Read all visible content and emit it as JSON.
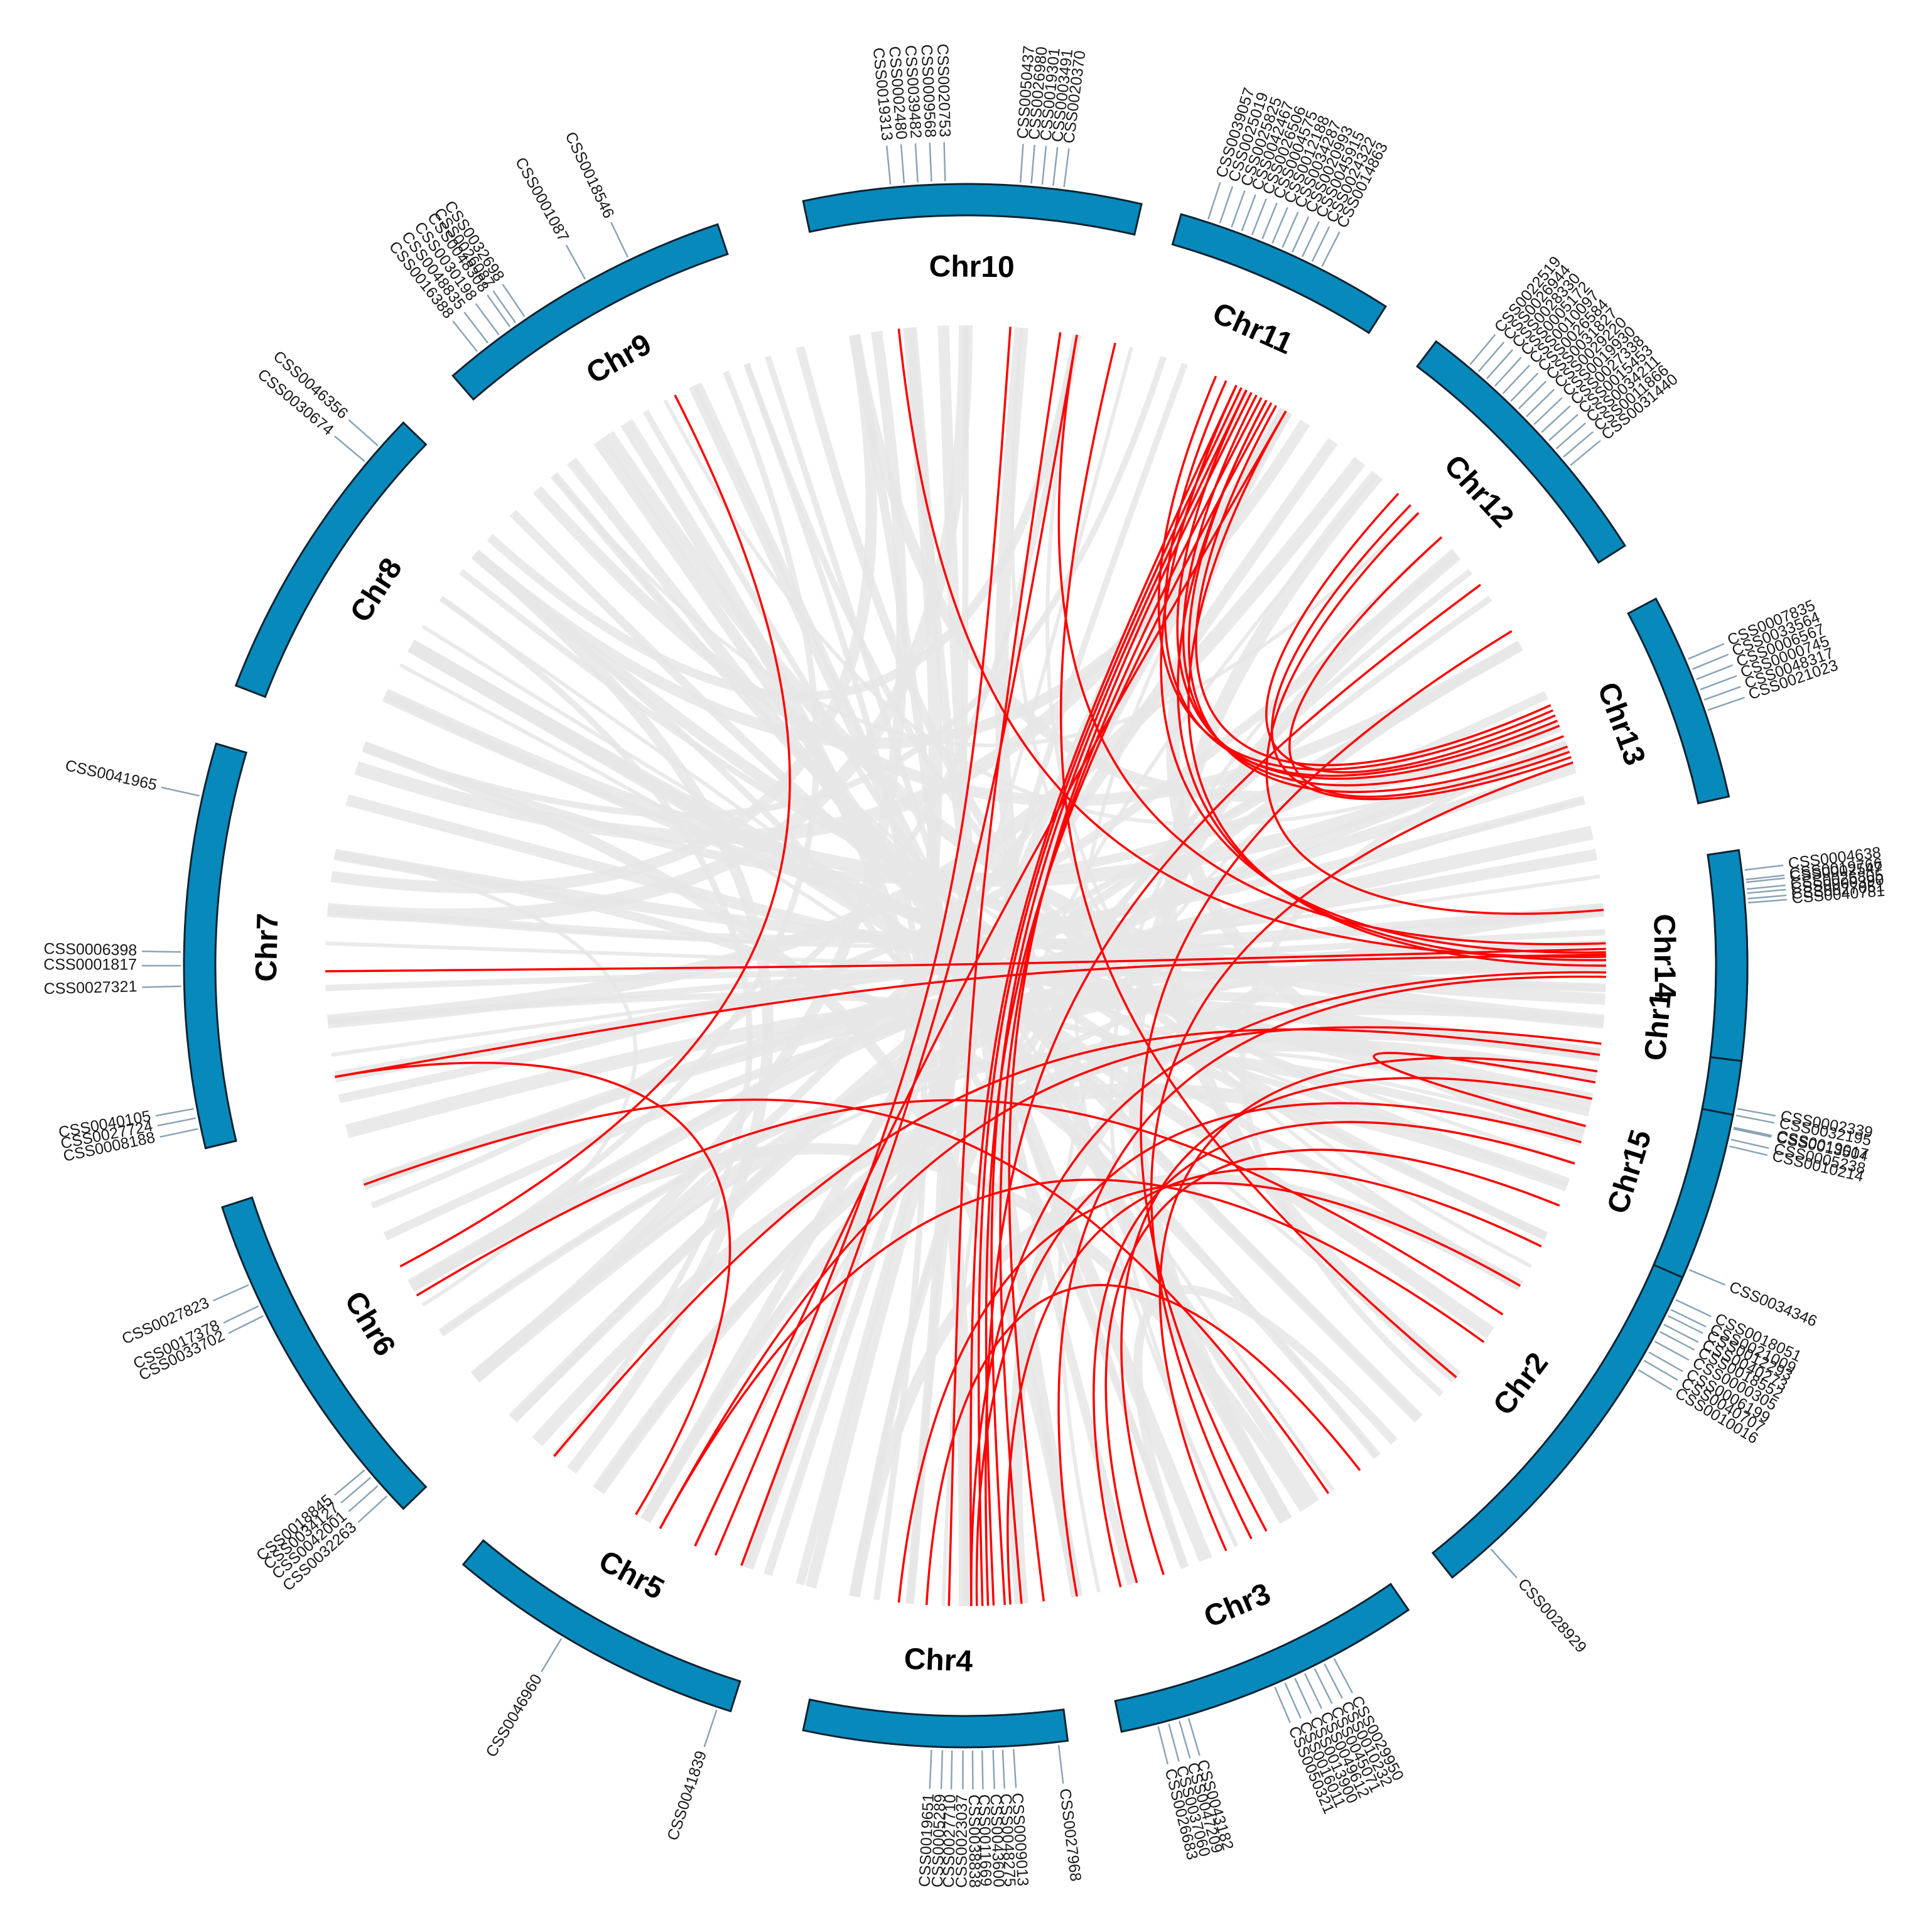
{
  "colors": {
    "chromosome": "#0789bc",
    "chromosome_outline": "#0b2330",
    "collinear_link": "#ff0000",
    "background_synteny": "#e6e6e6",
    "gene_tick": "#8aa4b6"
  },
  "chromosomes": [
    {
      "id": "Chr1",
      "label": "Chr1",
      "start": -6.5,
      "end": 16.5,
      "genes": [
        {
          "label": "CSS0002547",
          "pos": -6.1
        },
        {
          "label": "CSS0000390",
          "pos": -5.3
        },
        {
          "label": "CSS0040781",
          "pos": -4.6
        },
        {
          "label": "CSS0002339",
          "pos": 10.5
        },
        {
          "label": "CSS0032195",
          "pos": 11.0
        },
        {
          "label": "CSS0019017",
          "pos": 11.9
        },
        {
          "label": "CSS0005238",
          "pos": 12.8
        }
      ]
    },
    {
      "id": "Chr2",
      "label": "Chr2",
      "start": 22.5,
      "end": 51.5,
      "genes": [
        {
          "label": "CSS0018051",
          "pos": 25.2
        },
        {
          "label": "CSS0021009",
          "pos": 26.0
        },
        {
          "label": "CSS0012293",
          "pos": 26.5
        },
        {
          "label": "CSS0040273",
          "pos": 27.2
        },
        {
          "label": "CSS0018552",
          "pos": 27.8
        },
        {
          "label": "CSS0000305",
          "pos": 28.6
        },
        {
          "label": "CSS0006199",
          "pos": 29.5
        },
        {
          "label": "CSS0040707",
          "pos": 30.2
        },
        {
          "label": "CSS0010016",
          "pos": 31.0
        },
        {
          "label": "CSS0028929",
          "pos": 48.0
        }
      ]
    },
    {
      "id": "Chr3",
      "label": "Chr3",
      "start": 55.5,
      "end": 78.5,
      "genes": [
        {
          "label": "CSS0029950",
          "pos": 62.0
        },
        {
          "label": "CSS0010232",
          "pos": 62.8
        },
        {
          "label": "CSS0045071",
          "pos": 63.6
        },
        {
          "label": "CSS0049612",
          "pos": 64.4
        },
        {
          "label": "CSS0013900",
          "pos": 65.2
        },
        {
          "label": "CSS0016011",
          "pos": 66.0
        },
        {
          "label": "CSS0050321",
          "pos": 66.8
        },
        {
          "label": "CSS0043182",
          "pos": 73.5
        },
        {
          "label": "CSS0047209",
          "pos": 74.2
        },
        {
          "label": "CSS0037060",
          "pos": 75.0
        },
        {
          "label": "CSS0026683",
          "pos": 75.8
        }
      ]
    },
    {
      "id": "Chr4",
      "label": "Chr4",
      "start": 82.5,
      "end": 102.0,
      "genes": [
        {
          "label": "CSS0027968",
          "pos": 83.2
        },
        {
          "label": "CSS0009013",
          "pos": 86.5
        },
        {
          "label": "CSS0048275",
          "pos": 87.3
        },
        {
          "label": "CSS0043600",
          "pos": 88.0
        },
        {
          "label": "CSS0011669",
          "pos": 88.8
        },
        {
          "label": "CSS0038838",
          "pos": 89.5
        },
        {
          "label": "CSS0023037",
          "pos": 90.2
        },
        {
          "label": "CSS0027710",
          "pos": 91.0
        },
        {
          "label": "CSS0005289",
          "pos": 91.7
        },
        {
          "label": "CSS0019651",
          "pos": 92.5
        }
      ]
    },
    {
      "id": "Chr5",
      "label": "Chr5",
      "start": 107.5,
      "end": 130.0,
      "genes": [
        {
          "label": "CSS0041839",
          "pos": 108.5
        },
        {
          "label": "CSS0046960",
          "pos": 121.0
        }
      ]
    },
    {
      "id": "Chr6",
      "label": "Chr6",
      "start": 136.0,
      "end": 162.0,
      "genes": [
        {
          "label": "CSS0032263",
          "pos": 137.5
        },
        {
          "label": "CSS0042001",
          "pos": 138.5
        },
        {
          "label": "CSS0034127",
          "pos": 139.3
        },
        {
          "label": "CSS0018845",
          "pos": 140.0
        },
        {
          "label": "CSS0033702",
          "pos": 153.5
        },
        {
          "label": "CSS0017378",
          "pos": 154.3
        },
        {
          "label": "CSS0027823",
          "pos": 156.0
        }
      ]
    },
    {
      "id": "Chr7",
      "label": "Chr7",
      "start": 166.5,
      "end": 196.5,
      "genes": [
        {
          "label": "CSS0008188",
          "pos": 168.0
        },
        {
          "label": "CSS0027724",
          "pos": 168.8
        },
        {
          "label": "CSS0040105",
          "pos": 169.5
        },
        {
          "label": "CSS0027321",
          "pos": 178.5
        },
        {
          "label": "CSS0001817",
          "pos": 180.0
        },
        {
          "label": "CSS0006398",
          "pos": 181.0
        },
        {
          "label": "CSS0041965",
          "pos": 192.5
        }
      ]
    },
    {
      "id": "Chr8",
      "label": "Chr8",
      "start": 201.0,
      "end": 224.0,
      "genes": [
        {
          "label": "CSS0030674",
          "pos": 220.0
        },
        {
          "label": "CSS0046356",
          "pos": 221.5
        }
      ]
    },
    {
      "id": "Chr9",
      "label": "Chr9",
      "start": 229.0,
      "end": 251.5,
      "genes": [
        {
          "label": "CSS0016388",
          "pos": 231.5
        },
        {
          "label": "CSS0048835",
          "pos": 232.5
        },
        {
          "label": "CSS0030198",
          "pos": 233.5
        },
        {
          "label": "CSS0048308",
          "pos": 234.5
        },
        {
          "label": "CSS0026087",
          "pos": 235.0
        },
        {
          "label": "CSS0032698",
          "pos": 235.8
        },
        {
          "label": "CSS0001087",
          "pos": 241.0
        },
        {
          "label": "CSS0018546",
          "pos": 244.5
        }
      ]
    },
    {
      "id": "Chr10",
      "label": "Chr10",
      "start": 258.0,
      "end": 283.0,
      "genes": [
        {
          "label": "CSS0019313",
          "pos": 264.5
        },
        {
          "label": "CSS0002480",
          "pos": 265.5
        },
        {
          "label": "CSS0039482",
          "pos": 266.5
        },
        {
          "label": "CSS0009568",
          "pos": 267.5
        },
        {
          "label": "CSS0020753",
          "pos": 268.5
        },
        {
          "label": "CSS0050437",
          "pos": 274.0
        },
        {
          "label": "CSS0026980",
          "pos": 274.8
        },
        {
          "label": "CSS0019301",
          "pos": 275.6
        },
        {
          "label": "CSS0003491",
          "pos": 276.4
        },
        {
          "label": "CSS0020370",
          "pos": 277.2
        }
      ]
    },
    {
      "id": "Chr11",
      "label": "Chr11",
      "start": 286.0,
      "end": 302.5,
      "genes": [
        {
          "label": "CSS0039057",
          "pos": 288.0
        },
        {
          "label": "CSS0025019",
          "pos": 288.9
        },
        {
          "label": "CSS0025825",
          "pos": 289.8
        },
        {
          "label": "CSS0042467",
          "pos": 290.6
        },
        {
          "label": "CSS0026506",
          "pos": 291.4
        },
        {
          "label": "CSS0004575",
          "pos": 292.2
        },
        {
          "label": "CSS0012188",
          "pos": 293.0
        },
        {
          "label": "CSS0034287",
          "pos": 293.8
        },
        {
          "label": "CSS0020993",
          "pos": 294.6
        },
        {
          "label": "CSS0045915",
          "pos": 295.4
        },
        {
          "label": "CSS0024322",
          "pos": 296.2
        },
        {
          "label": "CSS0014863",
          "pos": 297.0
        }
      ]
    },
    {
      "id": "Chr12",
      "label": "Chr12",
      "start": 307.0,
      "end": 327.5,
      "genes": [
        {
          "label": "CSS0022519",
          "pos": 310.0
        },
        {
          "label": "CSS0026944",
          "pos": 310.8
        },
        {
          "label": "CSS0028330",
          "pos": 311.6
        },
        {
          "label": "CSS0005172",
          "pos": 312.4
        },
        {
          "label": "CSS0010097",
          "pos": 313.2
        },
        {
          "label": "CSS0026584",
          "pos": 314.0
        },
        {
          "label": "CSS0031827",
          "pos": 314.8
        },
        {
          "label": "CSS0029220",
          "pos": 315.6
        },
        {
          "label": "CSS0019930",
          "pos": 316.4
        },
        {
          "label": "CSS0027338",
          "pos": 317.2
        },
        {
          "label": "CSS0015453",
          "pos": 318.0
        },
        {
          "label": "CSS0034211",
          "pos": 318.8
        },
        {
          "label": "CSS0011866",
          "pos": 319.6
        },
        {
          "label": "CSS0031440",
          "pos": 320.4
        }
      ]
    },
    {
      "id": "Chr13",
      "label": "Chr13",
      "start": 332.0,
      "end": 347.5,
      "genes": [
        {
          "label": "CSS0007835",
          "pos": 337.0
        },
        {
          "label": "CSS0033564",
          "pos": 337.8
        },
        {
          "label": "CSS0006567",
          "pos": 338.6
        },
        {
          "label": "CSS0000745",
          "pos": 339.4
        },
        {
          "label": "CSS0048317",
          "pos": 340.2
        },
        {
          "label": "CSS0021023",
          "pos": 341.0
        }
      ]
    },
    {
      "id": "Chr14",
      "label": "Chr14",
      "start": 351.5,
      "end": 367.0,
      "genes": [
        {
          "label": "CSS0004638",
          "pos": 353.0
        },
        {
          "label": "CSS0019766",
          "pos": 353.7
        },
        {
          "label": "CSS0026805",
          "pos": 354.4
        },
        {
          "label": "CSS0027051",
          "pos": 355.1
        }
      ]
    },
    {
      "id": "Chr15",
      "label": "Chr15",
      "start": 371.0,
      "end": 383.5,
      "genes": [
        {
          "label": "CSS0013504",
          "pos": 372.0
        },
        {
          "label": "CSS0010214",
          "pos": 373.3
        },
        {
          "label": "CSS0034346",
          "pos": 382.8
        }
      ]
    }
  ],
  "red_links": [
    [
      -1.5,
      179.5
    ],
    [
      -1.0,
      170.0
    ],
    [
      -0.5,
      298.0
    ],
    [
      0.0,
      300.0
    ],
    [
      -1.2,
      295.0
    ],
    [
      0.6,
      89.5
    ],
    [
      1.0,
      80.0
    ],
    [
      -0.8,
      264.0
    ],
    [
      -2.0,
      280.0
    ],
    [
      8.0,
      130.0
    ],
    [
      7.0,
      118.5
    ],
    [
      9.5,
      66.0
    ],
    [
      10.5,
      14.5
    ],
    [
      12.0,
      72.0
    ],
    [
      16.0,
      89.0
    ],
    [
      18.0,
      76.0
    ],
    [
      22.0,
      74.5
    ],
    [
      26.0,
      86.0
    ],
    [
      30.0,
      96.0
    ],
    [
      33.0,
      149.0
    ],
    [
      36.0,
      118.5
    ],
    [
      40.0,
      283.5
    ],
    [
      63.5,
      341.5
    ],
    [
      62.0,
      328.5
    ],
    [
      52.0,
      93.5
    ],
    [
      55.5,
      160.0
    ],
    [
      83.0,
      296.5
    ],
    [
      85.0,
      297.5
    ],
    [
      86.5,
      296.0
    ],
    [
      87.5,
      298.5
    ],
    [
      88.5,
      295.5
    ],
    [
      89.5,
      295.0
    ],
    [
      91.5,
      278.5
    ],
    [
      88.0,
      323.5
    ],
    [
      110.5,
      280.0
    ],
    [
      113.0,
      274.0
    ],
    [
      115.0,
      300.0
    ],
    [
      121.0,
      170.0
    ],
    [
      152.0,
      243.0
    ],
    [
      294.0,
      337.5
    ],
    [
      297.0,
      339.0
    ],
    [
      293.0,
      336.5
    ],
    [
      296.0,
      338.0
    ],
    [
      314.0,
      341.0
    ],
    [
      315.0,
      355.0
    ],
    [
      318.0,
      340.5
    ],
    [
      312.5,
      337.0
    ],
    [
      299.0,
      336.0
    ],
    [
      298.0,
      340.0
    ]
  ],
  "background_links": [
    [
      2,
      182
    ],
    [
      -3,
      175
    ],
    [
      5,
      160
    ],
    [
      -5,
      190
    ],
    [
      10,
      125
    ],
    [
      13,
      140
    ],
    [
      20,
      250
    ],
    [
      25,
      230
    ],
    [
      30,
      100
    ],
    [
      35,
      210
    ],
    [
      40,
      215
    ],
    [
      45,
      240
    ],
    [
      48,
      70
    ],
    [
      57,
      235
    ],
    [
      60,
      320
    ],
    [
      65,
      300
    ],
    [
      70,
      220
    ],
    [
      75,
      265
    ],
    [
      80,
      200
    ],
    [
      85,
      355
    ],
    [
      92,
      310
    ],
    [
      95,
      270
    ],
    [
      100,
      330
    ],
    [
      104,
      300
    ],
    [
      110,
      265
    ],
    [
      115,
      345
    ],
    [
      120,
      358
    ],
    [
      125,
      5
    ],
    [
      135,
      340
    ],
    [
      140,
      360
    ],
    [
      145,
      15
    ],
    [
      150,
      330
    ],
    [
      155,
      0
    ],
    [
      160,
      350
    ],
    [
      165,
      8
    ],
    [
      172,
      355
    ],
    [
      178,
      2
    ],
    [
      185,
      345
    ],
    [
      195,
      12
    ],
    [
      205,
      340
    ],
    [
      212,
      20
    ],
    [
      218,
      360
    ],
    [
      225,
      30
    ],
    [
      232,
      45
    ],
    [
      238,
      90
    ],
    [
      245,
      55
    ],
    [
      252,
      70
    ],
    [
      260,
      95
    ],
    [
      268,
      80
    ],
    [
      275,
      60
    ],
    [
      285,
      110
    ],
    [
      290,
      95
    ],
    [
      300,
      140
    ],
    [
      305,
      120
    ],
    [
      310,
      40
    ],
    [
      318,
      65
    ],
    [
      325,
      100
    ],
    [
      335,
      200
    ],
    [
      342,
      170
    ],
    [
      348,
      150
    ],
    [
      352,
      185
    ],
    [
      358,
      160
    ],
    [
      362,
      205
    ],
    [
      368,
      120
    ],
    [
      373,
      210
    ],
    [
      378,
      230
    ],
    [
      380,
      175
    ],
    [
      376,
      145
    ],
    [
      3,
      220
    ],
    [
      15,
      300
    ],
    [
      28,
      275
    ],
    [
      42,
      340
    ],
    [
      50,
      190
    ],
    [
      58,
      150
    ],
    [
      68,
      245
    ],
    [
      78,
      330
    ],
    [
      98,
      250
    ],
    [
      108,
      300
    ],
    [
      128,
      220
    ],
    [
      132,
      20
    ],
    [
      148,
      190
    ],
    [
      158,
      280
    ],
    [
      168,
      320
    ],
    [
      188,
      260
    ],
    [
      198,
      300
    ],
    [
      208,
      50
    ],
    [
      215,
      130
    ],
    [
      222,
      280
    ],
    [
      228,
      330
    ],
    [
      236,
      5
    ],
    [
      242,
      340
    ],
    [
      248,
      150
    ],
    [
      255,
      25
    ],
    [
      262,
      140
    ],
    [
      270,
      185
    ],
    [
      280,
      30
    ],
    [
      288,
      200
    ],
    [
      296,
      105
    ],
    [
      302,
      220
    ],
    [
      308,
      175
    ],
    [
      315,
      230
    ],
    [
      322,
      90
    ],
    [
      330,
      135
    ],
    [
      338,
      260
    ]
  ]
}
